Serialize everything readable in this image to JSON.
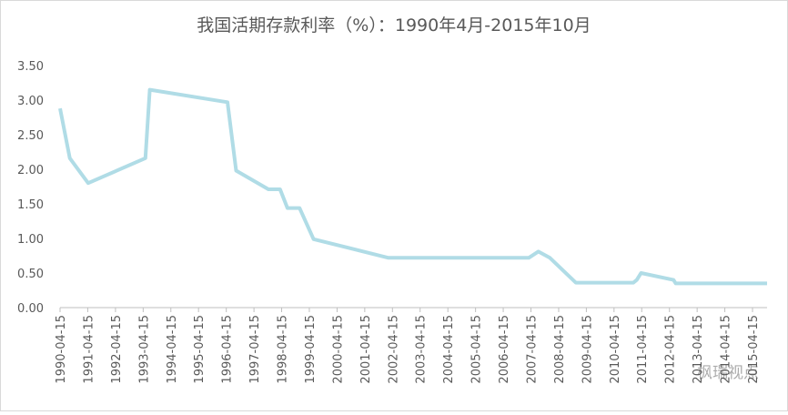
{
  "chart_data": {
    "type": "line",
    "title": "我国活期存款利率（%）：1990年4月-2015年10月",
    "x": [
      "1990-04-15",
      "1990-08-21",
      "1991-04-21",
      "1993-05-15",
      "1993-07-11",
      "1996-05-01",
      "1996-08-23",
      "1997-10-23",
      "1998-03-25",
      "1998-07-01",
      "1998-12-07",
      "1999-06-10",
      "2002-02-21",
      "2007-03-18",
      "2007-07-21",
      "2007-12-21",
      "2008-11-27",
      "2010-12-26",
      "2011-02-09",
      "2011-04-06",
      "2012-06-08",
      "2012-07-06",
      "2015-10-24"
    ],
    "series": [
      {
        "name": "活期存款利率",
        "color": "#b0dce6",
        "values": [
          2.88,
          2.16,
          1.8,
          2.16,
          3.15,
          2.97,
          1.98,
          1.71,
          1.71,
          1.44,
          1.44,
          0.99,
          0.72,
          0.72,
          0.81,
          0.72,
          0.36,
          0.36,
          0.4,
          0.5,
          0.4,
          0.35,
          0.35
        ]
      }
    ],
    "xlim": [
      "1990-04-15",
      "2015-10-24"
    ],
    "xticks": [
      "1990-04-15",
      "1991-04-15",
      "1992-04-15",
      "1993-04-15",
      "1994-04-15",
      "1995-04-15",
      "1996-04-15",
      "1997-04-15",
      "1998-04-15",
      "1999-04-15",
      "2000-04-15",
      "2001-04-15",
      "2002-04-15",
      "2003-04-15",
      "2004-04-15",
      "2005-04-15",
      "2006-04-15",
      "2007-04-15",
      "2008-04-15",
      "2009-04-15",
      "2010-04-15",
      "2011-04-15",
      "2012-04-15",
      "2013-04-15",
      "2014-04-15",
      "2015-04-15"
    ],
    "ylim": [
      0,
      3.5
    ],
    "yticks": [
      {
        "value": 0,
        "label": "0.00"
      },
      {
        "value": 0.5,
        "label": "0.50"
      },
      {
        "value": 1,
        "label": "1.00"
      },
      {
        "value": 1.5,
        "label": "1.50"
      },
      {
        "value": 2,
        "label": "2.00"
      },
      {
        "value": 2.5,
        "label": "2.50"
      },
      {
        "value": 3,
        "label": "3.00"
      },
      {
        "value": 3.5,
        "label": "3.50"
      }
    ],
    "grid": false,
    "watermark": "枫瑞视点"
  }
}
